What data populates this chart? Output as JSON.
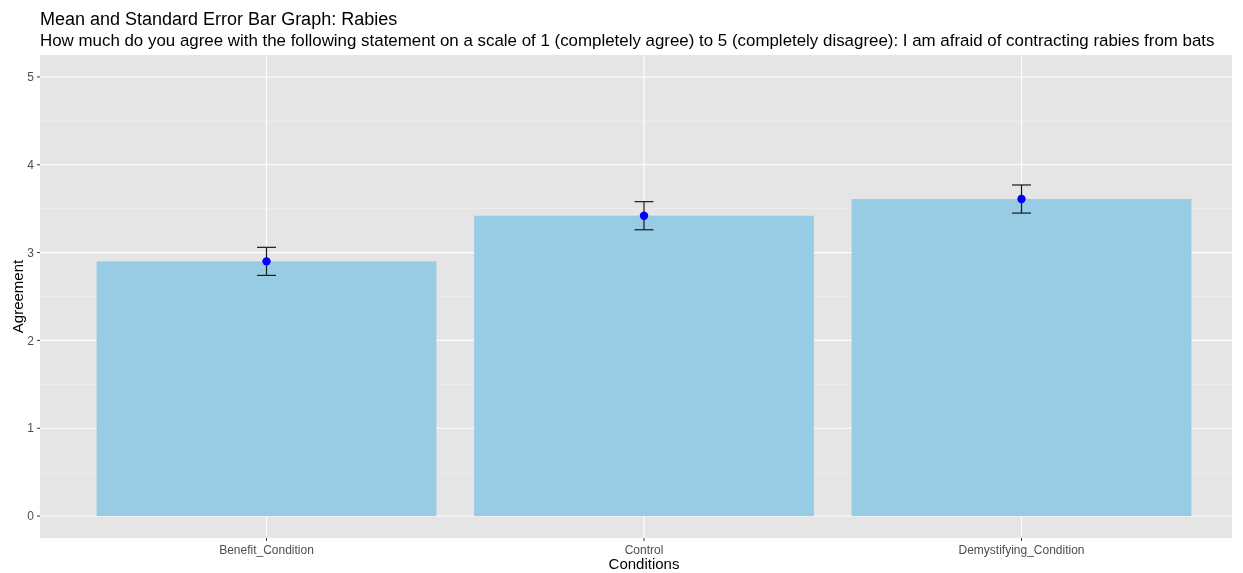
{
  "chart_data": {
    "type": "bar",
    "title": "Mean and Standard Error Bar Graph: Rabies",
    "subtitle": "How much do you agree with the following statement on a scale of 1 (completely agree) to 5 (completely disagree): I am afraid of contracting rabies from bats",
    "xlabel": "Conditions",
    "ylabel": "Agreement",
    "categories": [
      "Benefit_Condition",
      "Control",
      "Demystifying_Condition"
    ],
    "series": [
      {
        "color": "#98cce5",
        "values": [
          2.9,
          3.42,
          3.61
        ],
        "errors": [
          0.16,
          0.16,
          0.16
        ]
      },
      {
        "type": "scatter",
        "color": "#0000ff",
        "marker": "circle",
        "x": [
          "Benefit_Condition",
          "Control",
          "Demystifying_Condition"
        ],
        "values": [
          2.9,
          3.42,
          3.61
        ]
      }
    ],
    "ylim": [
      -0.25,
      5.25
    ],
    "yticks": [
      0,
      1,
      2,
      3,
      4,
      5
    ],
    "grid": true
  }
}
